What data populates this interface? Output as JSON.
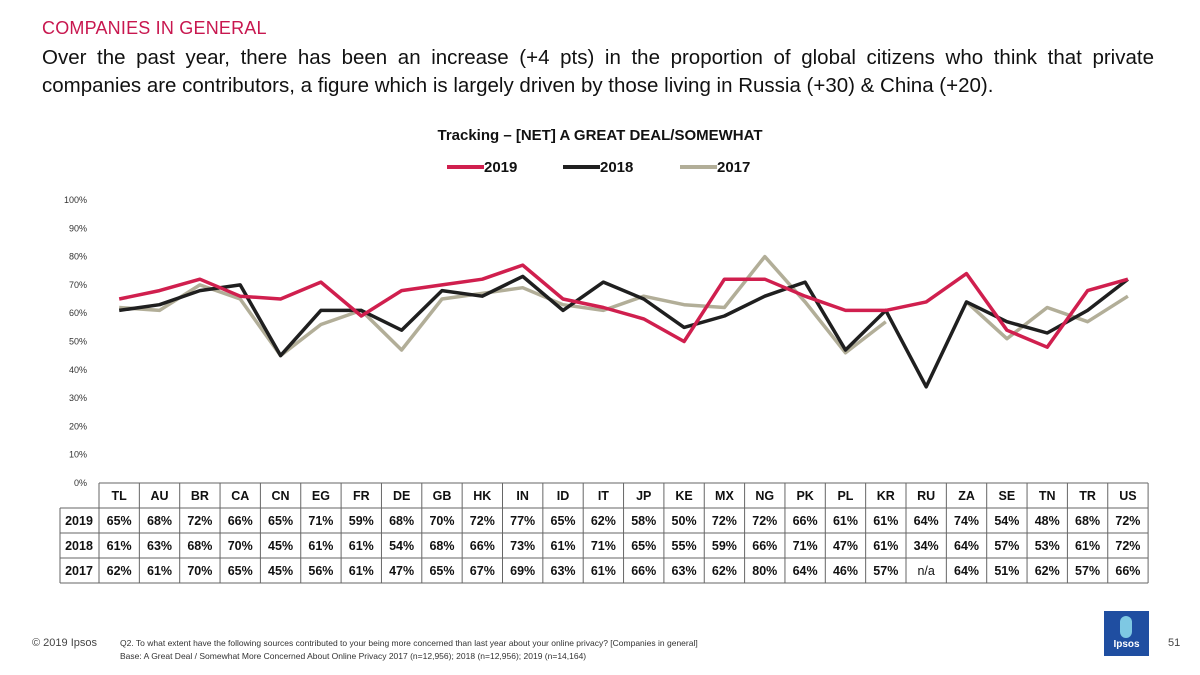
{
  "header": {
    "section": "COMPANIES IN GENERAL",
    "headline": "Over the past year, there has been an increase (+4 pts) in the proportion of global citizens who think that private companies are contributors, a figure which is largely driven by those living in Russia (+30) & China (+20)."
  },
  "chart_data": {
    "type": "line",
    "title": "Tracking – [NET] A GREAT DEAL/SOMEWHAT",
    "categories": [
      "TL",
      "AU",
      "BR",
      "CA",
      "CN",
      "EG",
      "FR",
      "DE",
      "GB",
      "HK",
      "IN",
      "ID",
      "IT",
      "JP",
      "KE",
      "MX",
      "NG",
      "PK",
      "PL",
      "KR",
      "RU",
      "ZA",
      "SE",
      "TN",
      "TR",
      "US"
    ],
    "ylim": [
      0,
      100
    ],
    "yticks": [
      "0%",
      "10%",
      "20%",
      "30%",
      "40%",
      "50%",
      "60%",
      "70%",
      "80%",
      "90%",
      "100%"
    ],
    "legend_position": "top-center",
    "series": [
      {
        "name": "2019",
        "color": "#d01f4e",
        "values": [
          65,
          68,
          72,
          66,
          65,
          71,
          59,
          68,
          70,
          72,
          77,
          65,
          62,
          58,
          50,
          72,
          72,
          66,
          61,
          61,
          64,
          74,
          54,
          48,
          68,
          72
        ]
      },
      {
        "name": "2018",
        "color": "#1f1f1f",
        "values": [
          61,
          63,
          68,
          70,
          45,
          61,
          61,
          54,
          68,
          66,
          73,
          61,
          71,
          65,
          55,
          59,
          66,
          71,
          47,
          61,
          34,
          64,
          57,
          53,
          61,
          72
        ]
      },
      {
        "name": "2017",
        "color": "#b2ae98",
        "values": [
          62,
          61,
          70,
          65,
          45,
          56,
          61,
          47,
          65,
          67,
          69,
          63,
          61,
          66,
          63,
          62,
          80,
          64,
          46,
          57,
          null,
          64,
          51,
          62,
          57,
          66
        ],
        "labels": [
          "62%",
          "61%",
          "70%",
          "65%",
          "45%",
          "56%",
          "61%",
          "47%",
          "65%",
          "67%",
          "69%",
          "63%",
          "61%",
          "66%",
          "63%",
          "62%",
          "80%",
          "64%",
          "46%",
          "57%",
          "n/a",
          "64%",
          "51%",
          "62%",
          "57%",
          "66%"
        ]
      }
    ]
  },
  "footer": {
    "copyright": "© 2019 Ipsos",
    "question": "Q2. To what extent have the following sources contributed to your being more concerned than last year about your online privacy? [Companies in general]",
    "base": "Base: A Great Deal / Somewhat More Concerned About Online Privacy 2017 (n=12,956); 2018 (n=12,956); 2019 (n=14,164)",
    "page": "51",
    "logo_text": "Ipsos"
  }
}
